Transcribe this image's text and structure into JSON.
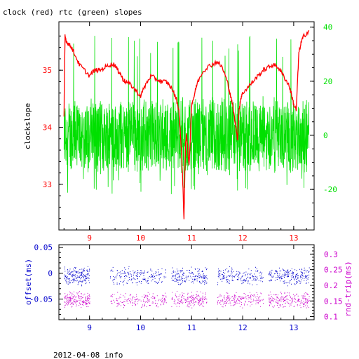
{
  "title": "clock (red) rtc (green) slopes",
  "footer": "2012-04-08 info",
  "colors": {
    "red": "#ff0000",
    "green": "#00e000",
    "blue": "#0000cc",
    "magenta": "#cc00cc",
    "axis": "#000000"
  },
  "chart_data": [
    {
      "type": "line",
      "title": "clock (red) rtc (green) slopes",
      "ylabel": "clockslope",
      "y2label": "",
      "xlim": [
        8.4,
        13.4
      ],
      "ylim": [
        32.2,
        35.85
      ],
      "y2lim": [
        -35,
        42
      ],
      "xticks": [
        "9",
        "10",
        "11",
        "12",
        "13"
      ],
      "yticks": [
        "33",
        "34",
        "35"
      ],
      "y2ticks": [
        "-20",
        "0",
        "20",
        "40"
      ],
      "series": [
        {
          "color": "red",
          "axis": "left",
          "x": [
            8.5,
            8.52,
            8.55,
            8.6,
            8.65,
            8.7,
            8.8,
            8.9,
            9.0,
            9.1,
            9.2,
            9.3,
            9.4,
            9.5,
            9.55,
            9.6,
            9.65,
            9.7,
            9.8,
            9.9,
            10.0,
            10.1,
            10.2,
            10.3,
            10.4,
            10.5,
            10.6,
            10.7,
            10.75,
            10.8,
            10.82,
            10.85,
            10.88,
            10.9,
            10.95,
            11.0,
            11.05,
            11.1,
            11.2,
            11.3,
            11.4,
            11.5,
            11.6,
            11.7,
            11.75,
            11.8,
            11.85,
            11.9,
            11.93,
            11.96,
            12.0,
            12.1,
            12.2,
            12.3,
            12.4,
            12.5,
            12.6,
            12.7,
            12.8,
            12.9,
            12.95,
            13.0,
            13.05,
            13.1,
            13.15,
            13.2,
            13.3
          ],
          "y": [
            34.2,
            35.6,
            35.5,
            35.45,
            35.4,
            35.3,
            35.1,
            35.0,
            34.9,
            35.0,
            35.0,
            35.05,
            35.1,
            35.1,
            35.0,
            34.95,
            34.85,
            34.8,
            34.75,
            34.65,
            34.55,
            34.75,
            34.9,
            34.85,
            34.8,
            34.8,
            34.7,
            34.5,
            34.3,
            33.6,
            33.2,
            32.4,
            33.7,
            33.9,
            33.3,
            34.4,
            34.55,
            34.75,
            34.95,
            35.05,
            35.1,
            35.15,
            35.05,
            34.8,
            34.6,
            34.4,
            34.1,
            33.8,
            34.3,
            34.5,
            34.6,
            34.7,
            34.8,
            34.9,
            35.0,
            35.05,
            35.1,
            35.05,
            34.9,
            34.75,
            34.6,
            34.4,
            34.3,
            35.3,
            35.5,
            35.6,
            35.7
          ]
        },
        {
          "color": "green",
          "axis": "right",
          "x_range": [
            8.5,
            13.3
          ],
          "y_range": [
            -22,
            37
          ]
        }
      ]
    },
    {
      "type": "scatter",
      "ylabel": "offset(ms)",
      "y2label": "rnd-trip(ms)",
      "xlim": [
        8.4,
        13.4
      ],
      "ylim": [
        -0.09,
        0.055
      ],
      "y2lim": [
        0.09,
        0.33
      ],
      "xticks": [
        "9",
        "10",
        "11",
        "12",
        "13"
      ],
      "yticks": [
        "0.05",
        "0",
        "-0.05"
      ],
      "y2ticks": [
        "0.3",
        "0.25",
        "0.2",
        "0.15",
        "0.1"
      ],
      "series": [
        {
          "color": "blue",
          "axis": "left",
          "y_center": -0.005,
          "spread": 0.015
        },
        {
          "color": "magenta",
          "axis": "right",
          "y_center": 0.155,
          "spread": 0.02
        }
      ]
    }
  ]
}
